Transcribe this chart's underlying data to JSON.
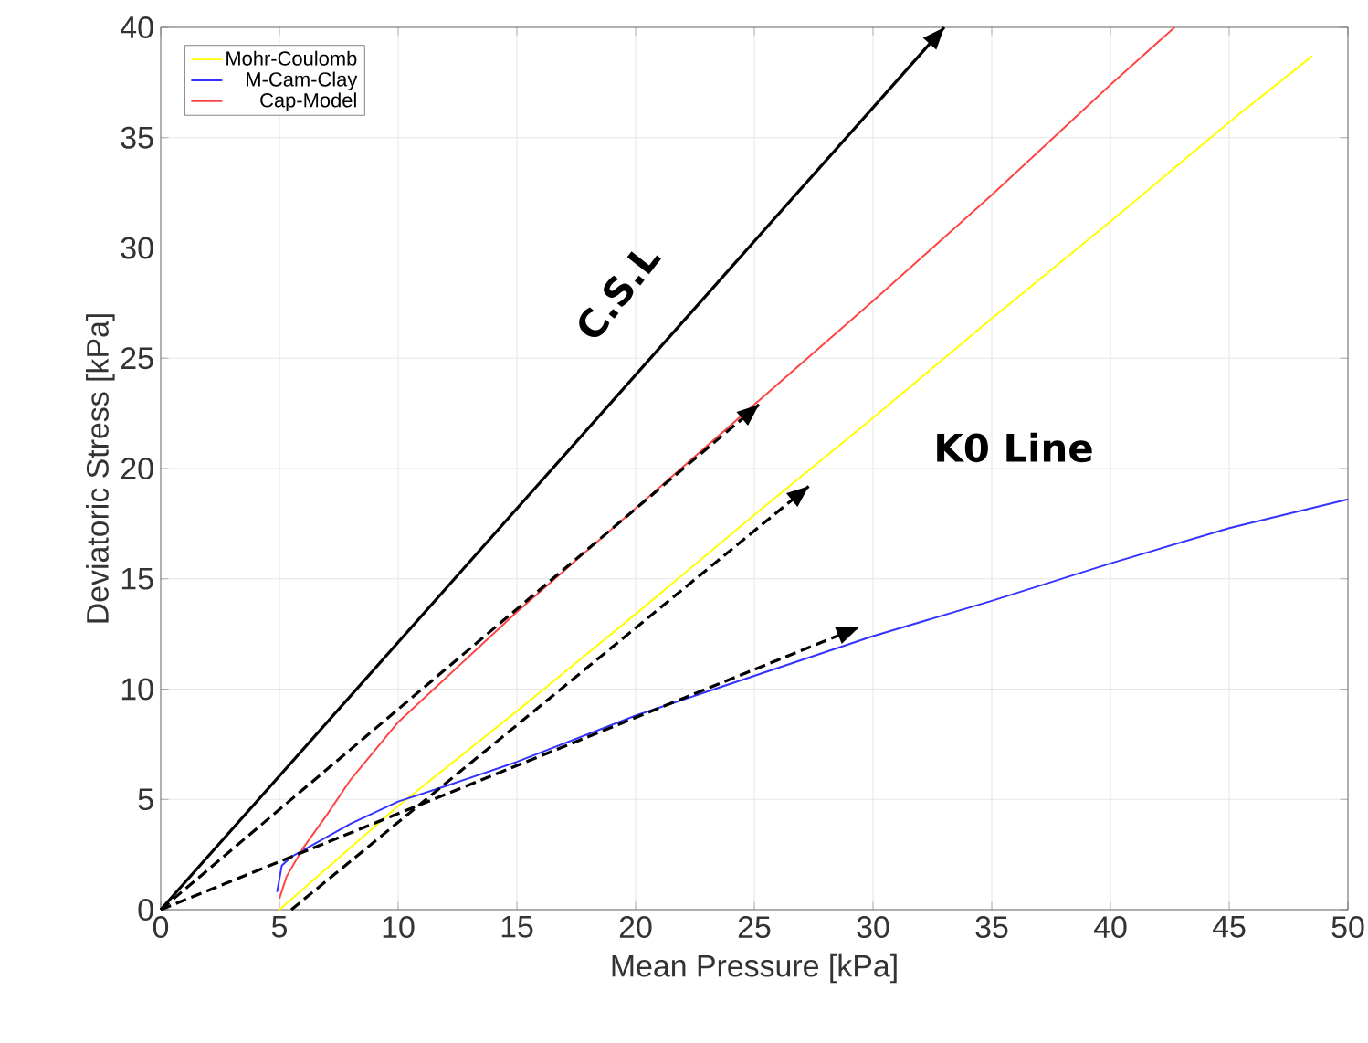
{
  "chart_data": {
    "type": "line",
    "xlabel": "Mean Pressure [kPa]",
    "ylabel": "Deviatoric Stress [kPa]",
    "xlim": [
      0,
      50
    ],
    "ylim": [
      0,
      40
    ],
    "xticks": [
      0,
      5,
      10,
      15,
      20,
      25,
      30,
      35,
      40,
      45,
      50
    ],
    "yticks": [
      0,
      5,
      10,
      15,
      20,
      25,
      30,
      35,
      40
    ],
    "grid": true,
    "legend": "top left",
    "marker": "none",
    "series": [
      {
        "name": "Mohr-Coulomb",
        "color": "#ffff00",
        "x": [
          5,
          10,
          15,
          20,
          25,
          30,
          35,
          40,
          45,
          48.5
        ],
        "values": [
          0,
          4.7,
          9.0,
          13.4,
          17.9,
          22.3,
          26.8,
          31.2,
          35.7,
          38.7
        ]
      },
      {
        "name": "M-Cam-Clay",
        "color": "#3333ff",
        "x": [
          4.9,
          5.1,
          5.5,
          6,
          8,
          10,
          12,
          15,
          20,
          25,
          30,
          35,
          40,
          45,
          50
        ],
        "values": [
          0.8,
          2.0,
          2.4,
          2.7,
          3.9,
          4.9,
          5.6,
          6.7,
          8.8,
          10.6,
          12.4,
          14.0,
          15.7,
          17.3,
          18.6
        ]
      },
      {
        "name": "Cap-Model",
        "color": "#ff4444",
        "x": [
          5,
          5.3,
          6,
          7,
          8,
          10,
          12,
          15,
          20,
          25,
          30,
          35,
          40,
          42.7
        ],
        "values": [
          0.5,
          1.5,
          2.8,
          4.3,
          5.9,
          8.5,
          10.5,
          13.5,
          18.2,
          22.9,
          27.6,
          32.4,
          37.4,
          40
        ]
      },
      {
        "color": "#000000",
        "line_style": "solid",
        "x": [
          0,
          33
        ],
        "values": [
          0,
          40
        ]
      },
      {
        "color": "#000000",
        "line_style": "dashed",
        "x": [
          0,
          25.2
        ],
        "values": [
          0,
          22.9
        ]
      },
      {
        "color": "#000000",
        "line_style": "dashed",
        "x": [
          5.5,
          27.3
        ],
        "values": [
          0,
          19.2
        ]
      },
      {
        "color": "#000000",
        "line_style": "dashed",
        "x": [
          0,
          29.4
        ],
        "values": [
          0,
          12.8
        ]
      }
    ],
    "annotations": [
      "C.S.L",
      "K0 Line"
    ]
  }
}
